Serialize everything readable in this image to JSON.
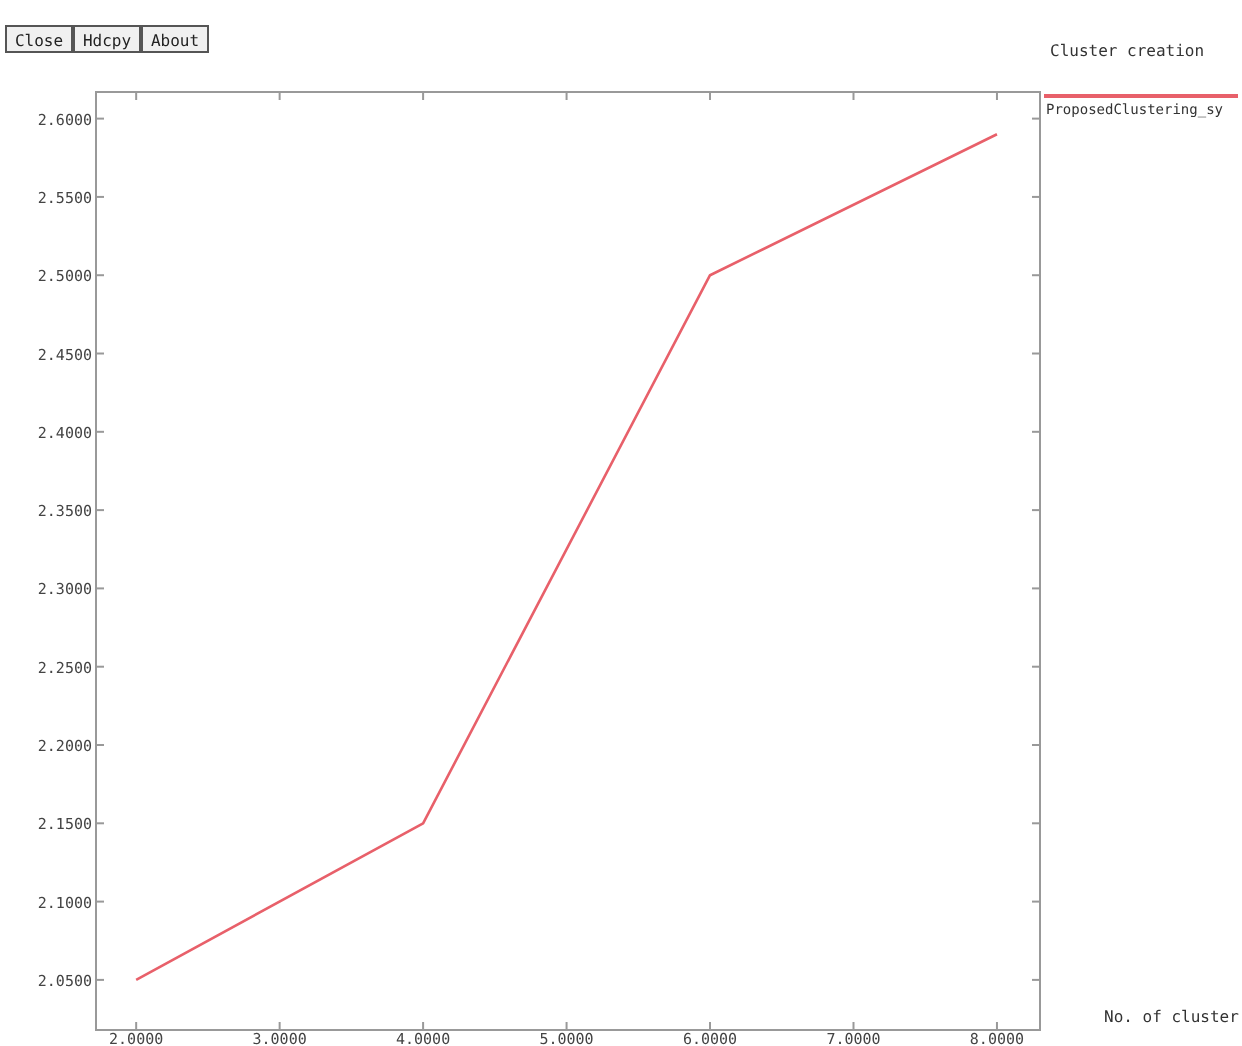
{
  "chart_data": {
    "type": "line",
    "title": "Cluster creation",
    "xlabel": "No. of cluster",
    "annotations": [
      "Close",
      "Hdcpy",
      "About"
    ],
    "x": [
      2,
      4,
      6,
      8
    ],
    "series": [
      {
        "name": "ProposedClustering_sy",
        "color": "#e8606a",
        "values": [
          2.05,
          2.15,
          2.5,
          2.59
        ]
      }
    ],
    "xlim": [
      1.72,
      8.3
    ],
    "ylim": [
      2.018,
      2.617
    ],
    "xticks": [
      {
        "value": 2,
        "label": "2.0000"
      },
      {
        "value": 3,
        "label": "3.0000"
      },
      {
        "value": 4,
        "label": "4.0000"
      },
      {
        "value": 5,
        "label": "5.0000"
      },
      {
        "value": 6,
        "label": "6.0000"
      },
      {
        "value": 7,
        "label": "7.0000"
      },
      {
        "value": 8,
        "label": "8.0000"
      }
    ],
    "yticks": [
      {
        "value": 2.05,
        "label": "2.0500"
      },
      {
        "value": 2.1,
        "label": "2.1000"
      },
      {
        "value": 2.15,
        "label": "2.1500"
      },
      {
        "value": 2.2,
        "label": "2.2000"
      },
      {
        "value": 2.25,
        "label": "2.2500"
      },
      {
        "value": 2.3,
        "label": "2.3000"
      },
      {
        "value": 2.35,
        "label": "2.3500"
      },
      {
        "value": 2.4,
        "label": "2.4000"
      },
      {
        "value": 2.45,
        "label": "2.4500"
      },
      {
        "value": 2.5,
        "label": "2.5000"
      },
      {
        "value": 2.55,
        "label": "2.5500"
      },
      {
        "value": 2.6,
        "label": "2.6000"
      }
    ],
    "legend": "right",
    "grid": false
  }
}
